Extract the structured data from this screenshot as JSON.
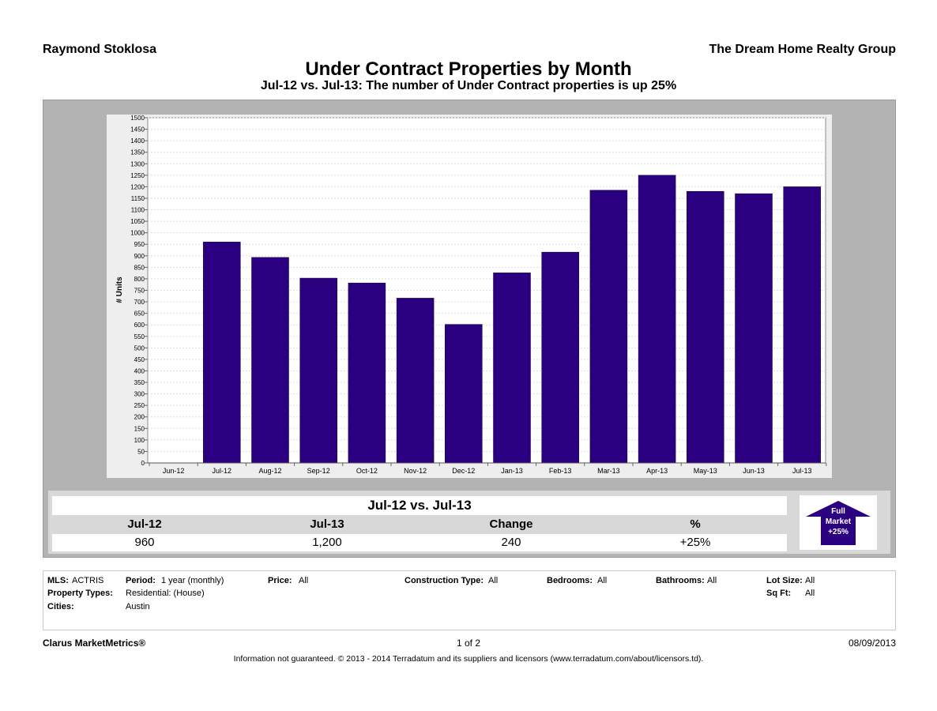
{
  "header": {
    "agent_name": "Raymond Stoklosa",
    "brokerage": "The Dream Home Realty Group",
    "title": "Under Contract Properties by Month",
    "subtitle": "Jul-12 vs. Jul-13: The number of Under Contract properties is up 25%"
  },
  "chart_data": {
    "type": "bar",
    "categories": [
      "Jun-12",
      "Jul-12",
      "Aug-12",
      "Sep-12",
      "Oct-12",
      "Nov-12",
      "Dec-12",
      "Jan-13",
      "Feb-13",
      "Mar-13",
      "Apr-13",
      "May-13",
      "Jun-13",
      "Jul-13"
    ],
    "values": [
      null,
      960,
      893,
      803,
      782,
      716,
      602,
      826,
      916,
      1185,
      1250,
      1180,
      1170,
      1200
    ],
    "ylabel": "# Units",
    "ylim": [
      0,
      1500
    ],
    "ytick_step": 50,
    "grid": true,
    "bar_color": "#2a0080"
  },
  "summary": {
    "title": "Jul-12 vs. Jul-13",
    "headers": [
      "Jul-12",
      "Jul-13",
      "Change",
      "%"
    ],
    "values": [
      "960",
      "1,200",
      "240",
      "+25%"
    ],
    "badge": {
      "line1": "Full",
      "line2": "Market",
      "line3": "+25%",
      "icon": "up-arrow-icon",
      "color": "#2a0080"
    }
  },
  "criteria": {
    "mls_label": "MLS:",
    "mls_value": "ACTRIS",
    "period_label": "Period:",
    "period_value": "1 year (monthly)",
    "price_label": "Price:",
    "price_value": "All",
    "construction_label": "Construction Type:",
    "construction_value": "All",
    "bedrooms_label": "Bedrooms:",
    "bedrooms_value": "All",
    "bathrooms_label": "Bathrooms:",
    "bathrooms_value": "All",
    "lotsize_label": "Lot Size:",
    "lotsize_value": "All",
    "proptypes_label": "Property Types:",
    "proptypes_value": "Residential: (House)",
    "sqft_label": "Sq Ft:",
    "sqft_value": "All",
    "cities_label": "Cities:",
    "cities_value": "Austin"
  },
  "footer": {
    "brand": "Clarus MarketMetrics®",
    "page": "1 of 2",
    "date": "08/09/2013",
    "disclaimer": "Information not guaranteed.  © 2013 - 2014 Terradatum and its suppliers and licensors (www.terradatum.com/about/licensors.td)."
  }
}
